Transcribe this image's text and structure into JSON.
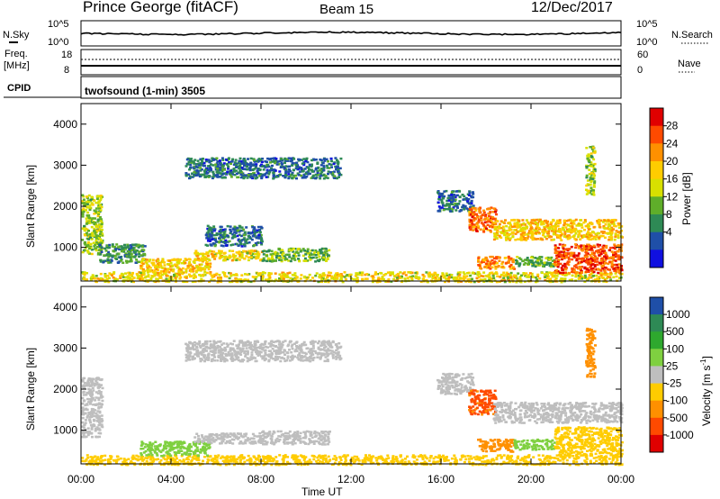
{
  "header": {
    "station": "Prince George (fitACF)",
    "beam": "Beam 15",
    "date": "12/Dec/2017"
  },
  "strip_labels": {
    "nsky": "N.Sky",
    "nsky_ticks": [
      "10^5",
      "10^0"
    ],
    "nsearch": "N.Search",
    "nsearch_ticks": [
      "10^5",
      "10^0"
    ],
    "freq": "Freq.",
    "freq_unit": "[MHz]",
    "freq_ticks": [
      "18",
      "8"
    ],
    "nave": "Nave",
    "nave_ticks": [
      "60",
      "0"
    ],
    "cpid": "CPID",
    "cpid_value": "twofsound (1-min) 3505"
  },
  "x_axis": {
    "label": "Time UT",
    "ticks": [
      "00:00",
      "04:00",
      "08:00",
      "12:00",
      "16:00",
      "20:00",
      "00:00"
    ]
  },
  "power_colorbar": {
    "label": "Power [dB]",
    "ticks": [
      "28",
      "24",
      "20",
      "16",
      "12",
      "8",
      "4"
    ],
    "colors": [
      "#e00000",
      "#ff4a00",
      "#ff9000",
      "#ffcc00",
      "#d8e000",
      "#5fae2a",
      "#2e8a55",
      "#1f4fa8",
      "#1010e0"
    ]
  },
  "velocity_colorbar": {
    "label": "Velocity [m s^-1]",
    "ticks": [
      "1000",
      "500",
      "100",
      "25",
      "-25",
      "-100",
      "-500",
      "-1000"
    ],
    "colors": [
      "#1f4fa8",
      "#2e8a55",
      "#2ea82e",
      "#7fd040",
      "#bebebe",
      "#ffcc00",
      "#ff9000",
      "#ff4a00",
      "#e00000"
    ]
  },
  "chart_data": [
    {
      "type": "heatmap",
      "title": "Power",
      "xlabel": "Time UT",
      "ylabel": "Slant Range [km]",
      "xlim": [
        0,
        24
      ],
      "ylim": [
        180,
        4500
      ],
      "yticks": [
        1000,
        2000,
        3000,
        4000
      ],
      "colorbar_label": "Power [dB]",
      "colorbar_ticks": [
        28,
        24,
        20,
        16,
        12,
        8,
        4
      ],
      "regions": [
        {
          "t0": 0.0,
          "t1": 0.9,
          "r0": 850,
          "r1": 2300,
          "level": 14
        },
        {
          "t0": 0.0,
          "t1": 24.0,
          "r0": 180,
          "r1": 420,
          "level": 18
        },
        {
          "t0": 0.7,
          "t1": 2.8,
          "r0": 650,
          "r1": 1100,
          "level": 9
        },
        {
          "t0": 2.6,
          "t1": 5.7,
          "r0": 400,
          "r1": 750,
          "level": 20
        },
        {
          "t0": 5.0,
          "t1": 8.0,
          "r0": 700,
          "r1": 950,
          "level": 18
        },
        {
          "t0": 5.5,
          "t1": 8.0,
          "r0": 1050,
          "r1": 1550,
          "level": 6
        },
        {
          "t0": 8.0,
          "t1": 11.0,
          "r0": 680,
          "r1": 1000,
          "level": 12
        },
        {
          "t0": 4.6,
          "t1": 11.5,
          "r0": 2700,
          "r1": 3200,
          "level": 6
        },
        {
          "t0": 15.8,
          "t1": 17.4,
          "r0": 1900,
          "r1": 2400,
          "level": 6
        },
        {
          "t0": 17.2,
          "t1": 18.4,
          "r0": 1400,
          "r1": 2000,
          "level": 26
        },
        {
          "t0": 18.3,
          "t1": 24.0,
          "r0": 1200,
          "r1": 1700,
          "level": 20
        },
        {
          "t0": 17.6,
          "t1": 19.2,
          "r0": 500,
          "r1": 800,
          "level": 24
        },
        {
          "t0": 19.2,
          "t1": 21.0,
          "r0": 550,
          "r1": 800,
          "level": 12
        },
        {
          "t0": 21.0,
          "t1": 24.0,
          "r0": 400,
          "r1": 1100,
          "level": 28
        },
        {
          "t0": 22.4,
          "t1": 22.8,
          "r0": 2300,
          "r1": 3500,
          "level": 14
        }
      ]
    },
    {
      "type": "heatmap",
      "title": "Velocity",
      "xlabel": "Time UT",
      "ylabel": "Slant Range [km]",
      "xlim": [
        0,
        24
      ],
      "ylim": [
        180,
        4500
      ],
      "yticks": [
        1000,
        2000,
        3000,
        4000
      ],
      "colorbar_label": "Velocity [m s^-1]",
      "colorbar_ticks": [
        1000,
        500,
        100,
        25,
        -25,
        -100,
        -500,
        -1000
      ],
      "regions": [
        {
          "t0": 0.0,
          "t1": 0.9,
          "r0": 850,
          "r1": 2300,
          "vel": 0
        },
        {
          "t0": 0.0,
          "t1": 24.0,
          "r0": 180,
          "r1": 420,
          "vel": -60
        },
        {
          "t0": 2.6,
          "t1": 5.7,
          "r0": 400,
          "r1": 750,
          "vel": 60
        },
        {
          "t0": 5.0,
          "t1": 8.0,
          "r0": 700,
          "r1": 950,
          "vel": 0
        },
        {
          "t0": 8.0,
          "t1": 11.0,
          "r0": 680,
          "r1": 1000,
          "vel": 0
        },
        {
          "t0": 4.6,
          "t1": 11.5,
          "r0": 2700,
          "r1": 3200,
          "vel": 0
        },
        {
          "t0": 15.8,
          "t1": 17.4,
          "r0": 1900,
          "r1": 2400,
          "vel": 0
        },
        {
          "t0": 17.2,
          "t1": 18.4,
          "r0": 1400,
          "r1": 2000,
          "vel": -700
        },
        {
          "t0": 18.3,
          "t1": 24.0,
          "r0": 1200,
          "r1": 1700,
          "vel": 0
        },
        {
          "t0": 17.6,
          "t1": 19.2,
          "r0": 500,
          "r1": 800,
          "vel": -300
        },
        {
          "t0": 19.2,
          "t1": 21.0,
          "r0": 550,
          "r1": 800,
          "vel": 60
        },
        {
          "t0": 21.0,
          "t1": 24.0,
          "r0": 400,
          "r1": 1100,
          "vel": -60
        },
        {
          "t0": 22.4,
          "t1": 22.8,
          "r0": 2300,
          "r1": 3500,
          "vel": -300
        }
      ]
    }
  ]
}
